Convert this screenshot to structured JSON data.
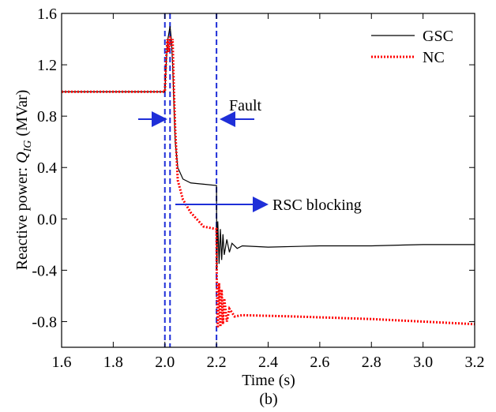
{
  "chart_data": {
    "type": "line",
    "x_label": "Time (s)",
    "y_label": {
      "prefix": "Reactive power: ",
      "symbol": "Q",
      "subscript": "IG",
      "suffix": " (MVar)"
    },
    "caption": "(b)",
    "annotations": [
      "Fault",
      "RSC blocking"
    ],
    "vlines": [
      2.0,
      2.02,
      2.2
    ],
    "vline_color": "#1f2fd8",
    "xlim": [
      1.6,
      3.2
    ],
    "xticks": [
      1.6,
      1.8,
      {
        "value": 2,
        "label": "2.0"
      },
      2.2,
      2.4,
      2.6,
      2.8,
      {
        "value": 3,
        "label": "3.0"
      },
      3.2
    ],
    "ylim": [
      -1.0,
      1.6
    ],
    "yticks": [
      -0.8,
      -0.4,
      {
        "value": 0,
        "label": "0.0"
      },
      0.4,
      0.8,
      1.2,
      1.6
    ],
    "legend": "top-right",
    "series": [
      {
        "name": "GSC",
        "color": "#000000",
        "style": "solid",
        "x": [
          1.6,
          2.0,
          2.005,
          2.01,
          2.02,
          2.025,
          2.03,
          2.035,
          2.04,
          2.05,
          2.07,
          2.1,
          2.15,
          2.2,
          2.201,
          2.205,
          2.21,
          2.215,
          2.22,
          2.225,
          2.23,
          2.24,
          2.25,
          2.26,
          2.28,
          2.3,
          2.4,
          2.6,
          2.8,
          3.0,
          3.2
        ],
        "values": [
          0.99,
          0.99,
          1.2,
          1.38,
          1.5,
          1.4,
          1.2,
          0.9,
          0.6,
          0.4,
          0.31,
          0.28,
          0.27,
          0.26,
          -0.4,
          -0.02,
          -0.35,
          -0.08,
          -0.32,
          -0.12,
          -0.28,
          -0.16,
          -0.26,
          -0.19,
          -0.23,
          -0.21,
          -0.22,
          -0.21,
          -0.21,
          -0.2,
          -0.2
        ]
      },
      {
        "name": "NC",
        "color": "#ff0000",
        "style": "dotted",
        "x": [
          1.6,
          2.0,
          2.005,
          2.01,
          2.015,
          2.02,
          2.025,
          2.03,
          2.035,
          2.04,
          2.05,
          2.07,
          2.1,
          2.15,
          2.2,
          2.201,
          2.205,
          2.21,
          2.215,
          2.22,
          2.225,
          2.23,
          2.24,
          2.25,
          2.27,
          2.3,
          2.5,
          2.8,
          3.0,
          3.2
        ],
        "values": [
          0.99,
          0.99,
          1.25,
          1.4,
          1.3,
          1.42,
          1.35,
          1.4,
          1.0,
          0.7,
          0.3,
          0.15,
          0.05,
          -0.06,
          -0.08,
          -0.45,
          -0.85,
          -0.5,
          -0.84,
          -0.55,
          -0.82,
          -0.62,
          -0.8,
          -0.7,
          -0.76,
          -0.75,
          -0.76,
          -0.78,
          -0.8,
          -0.82
        ]
      }
    ]
  }
}
